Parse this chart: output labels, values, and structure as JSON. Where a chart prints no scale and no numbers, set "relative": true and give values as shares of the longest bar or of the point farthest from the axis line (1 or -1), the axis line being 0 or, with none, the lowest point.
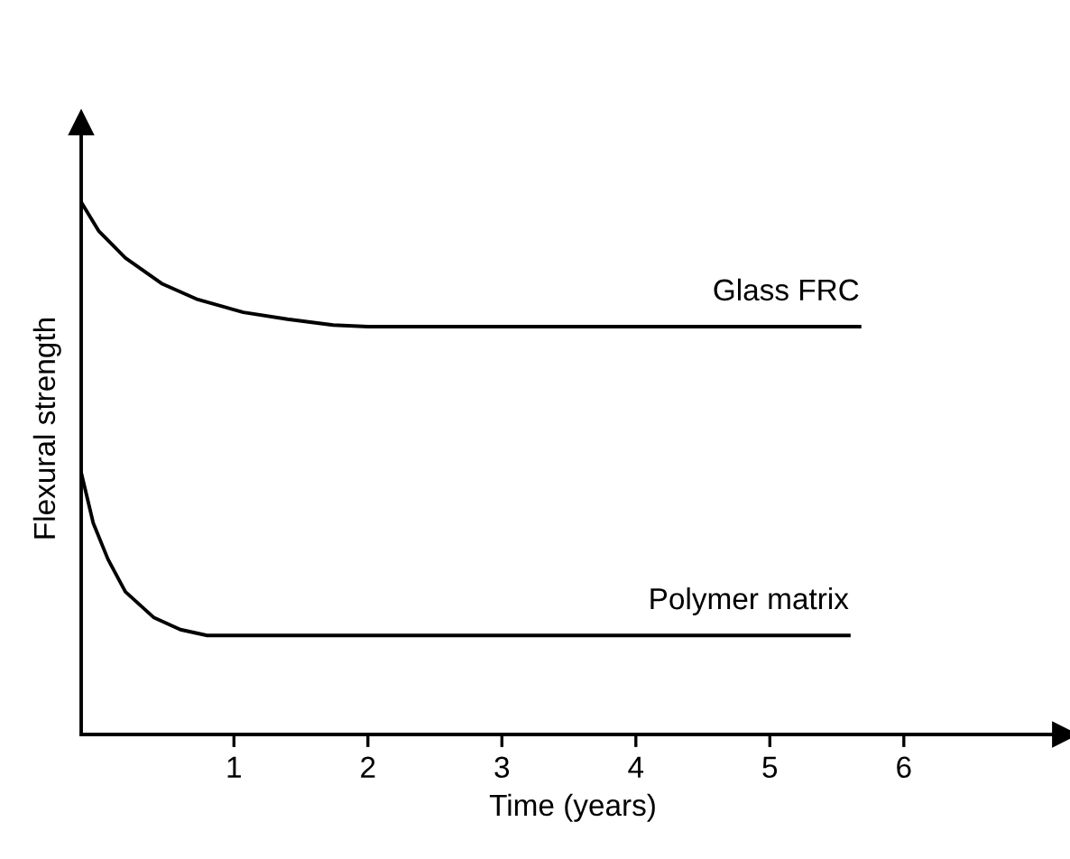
{
  "chart_data": {
    "type": "line",
    "relative": true,
    "xlabel": "Time (years)",
    "ylabel": "Flexural strength",
    "xlim": [
      -0.14,
      7.2
    ],
    "xticks": [
      1,
      2,
      3,
      4,
      5,
      6
    ],
    "grid": false,
    "legend": false,
    "marker": "none",
    "line_style": "solid",
    "tick_labels": "x",
    "series": [
      {
        "name": "Glass FRC",
        "color": "#000000",
        "x": [
          -0.14,
          -0.01,
          0.19,
          0.46,
          0.73,
          1.07,
          1.4,
          1.74,
          2.0,
          5.67
        ],
        "values": [
          1,
          0.946,
          0.895,
          0.847,
          0.817,
          0.793,
          0.78,
          0.769,
          0.766,
          0.766
        ]
      },
      {
        "name": "Polymer matrix",
        "color": "#000000",
        "x": [
          -0.14,
          -0.05,
          0.06,
          0.19,
          0.4,
          0.6,
          0.8,
          5.59
        ],
        "values": [
          0.492,
          0.397,
          0.329,
          0.268,
          0.22,
          0.197,
          0.186,
          0.186
        ]
      }
    ]
  }
}
